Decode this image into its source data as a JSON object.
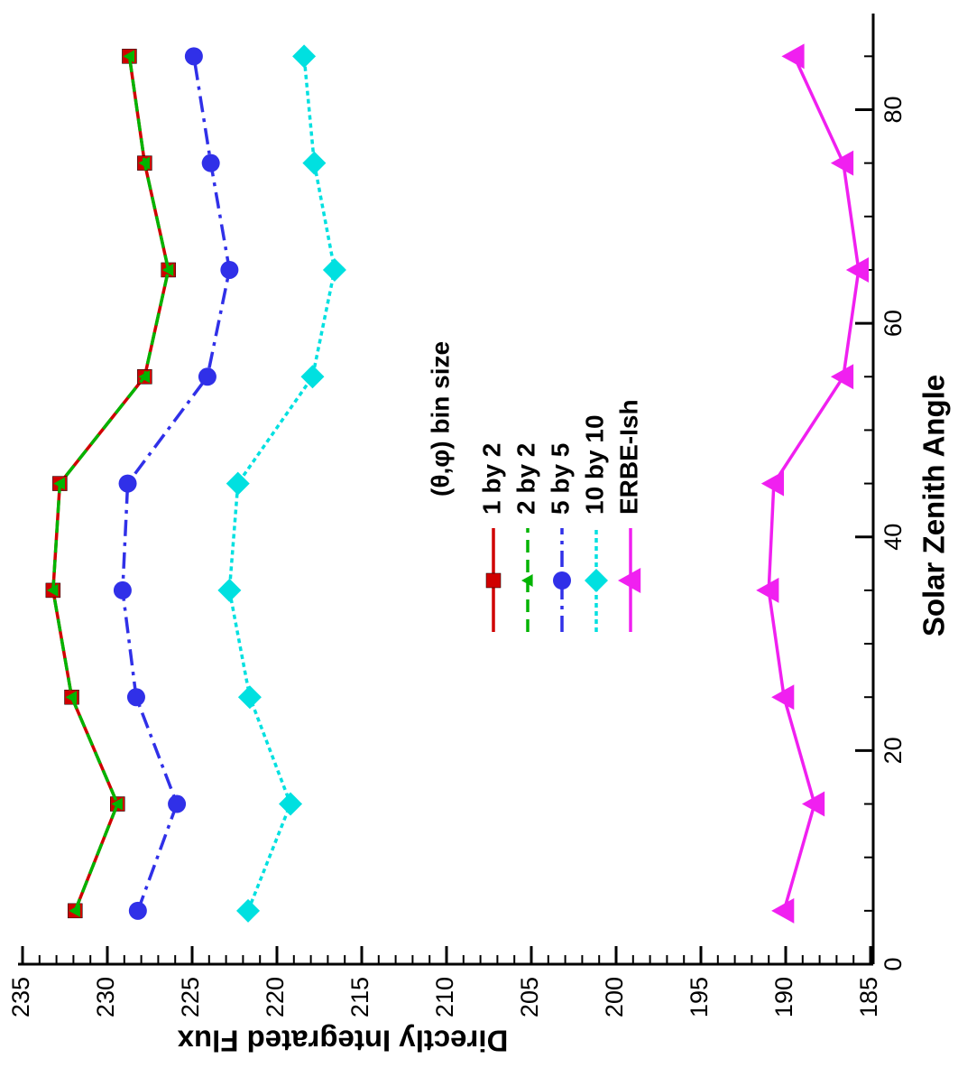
{
  "chart_data": {
    "type": "line",
    "x_label": "Solar Zenith Angle",
    "y_label": "Directly Integrated Flux",
    "legend_title": "(θ,φ) bin size",
    "x": [
      5,
      15,
      25,
      35,
      45,
      55,
      65,
      75,
      85
    ],
    "series": [
      {
        "name": "1 by 2",
        "color": "#d00000",
        "values": [
          231.9,
          229.4,
          232.1,
          233.2,
          232.8,
          227.8,
          226.4,
          227.8,
          228.7
        ]
      },
      {
        "name": "2 by 2",
        "color": "#00b400",
        "values": [
          231.9,
          229.4,
          232.1,
          233.2,
          232.8,
          227.8,
          226.4,
          227.8,
          228.7
        ]
      },
      {
        "name": "5 by 5",
        "color": "#3030e8",
        "values": [
          228.2,
          225.9,
          228.3,
          229.1,
          228.8,
          224.1,
          222.8,
          223.9,
          224.9
        ]
      },
      {
        "name": "10 by 10",
        "color": "#00e0e0",
        "values": [
          221.7,
          219.2,
          221.6,
          222.8,
          222.3,
          217.9,
          216.6,
          217.8,
          218.4
        ]
      },
      {
        "name": "ERBE-Ish",
        "color": "#f020f0",
        "values": [
          190.1,
          188.3,
          190.1,
          191.0,
          190.7,
          186.6,
          185.7,
          186.6,
          189.5
        ]
      }
    ],
    "xlim": [
      0,
      89
    ],
    "xticks": [
      0,
      20,
      40,
      60,
      80
    ],
    "ylim": [
      185,
      235
    ],
    "yticks": [
      185,
      190,
      195,
      200,
      205,
      210,
      215,
      220,
      225,
      230,
      235
    ]
  }
}
